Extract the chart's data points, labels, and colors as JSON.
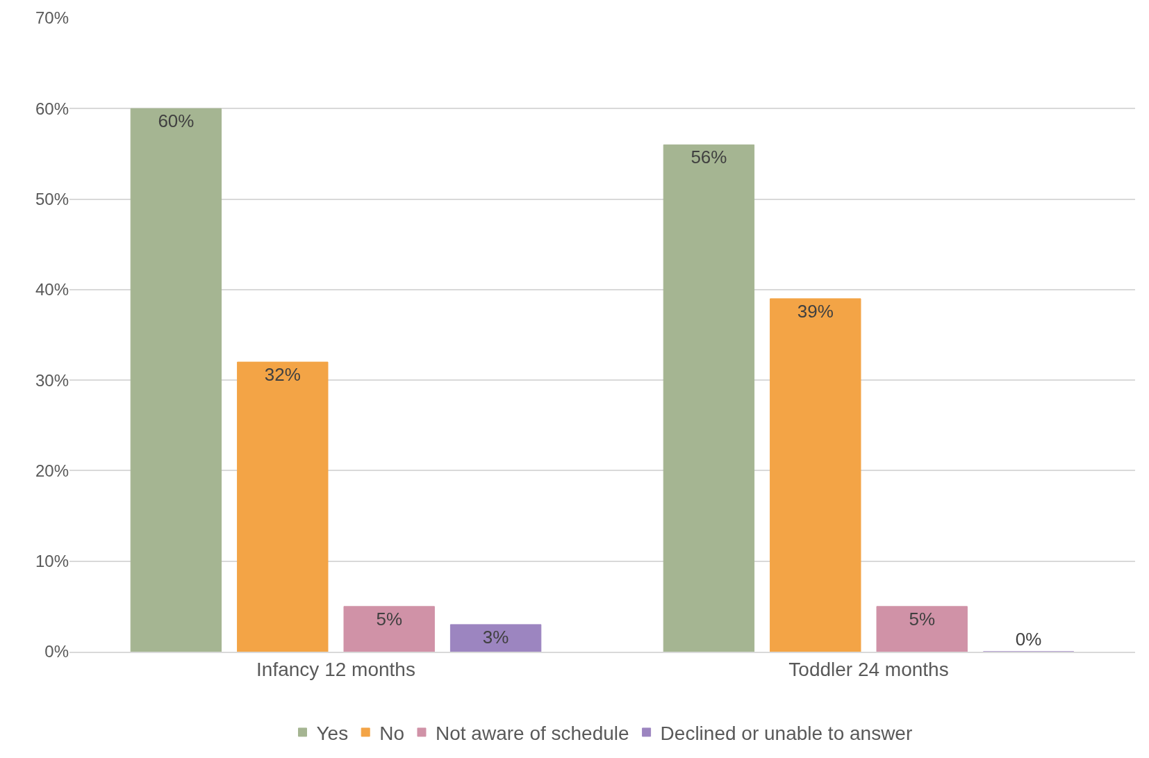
{
  "chart_data": {
    "type": "bar",
    "categories": [
      "Infancy 12 months",
      "Toddler 24 months"
    ],
    "series": [
      {
        "name": "Yes",
        "color": "#a5b592",
        "values": [
          60,
          56
        ],
        "value_labels": [
          "60%",
          "56%"
        ]
      },
      {
        "name": "No",
        "color": "#f3a446",
        "values": [
          32,
          39
        ],
        "value_labels": [
          "32%",
          "39%"
        ]
      },
      {
        "name": "Not aware of schedule",
        "color": "#d092a7",
        "values": [
          5,
          5
        ],
        "value_labels": [
          "5%",
          "5%"
        ]
      },
      {
        "name": "Declined or unable to answer",
        "color": "#9c85c0",
        "values": [
          3,
          0
        ],
        "value_labels": [
          "3%",
          "0%"
        ]
      }
    ],
    "ylim": [
      0,
      70
    ],
    "yticks": [
      {
        "value": 0,
        "label": "0%"
      },
      {
        "value": 10,
        "label": "10%"
      },
      {
        "value": 20,
        "label": "20%"
      },
      {
        "value": 30,
        "label": "30%"
      },
      {
        "value": 40,
        "label": "40%"
      },
      {
        "value": 50,
        "label": "50%"
      },
      {
        "value": 60,
        "label": "60%"
      },
      {
        "value": 70,
        "label": "70%"
      }
    ],
    "grid": "y",
    "legend": "bottom"
  }
}
